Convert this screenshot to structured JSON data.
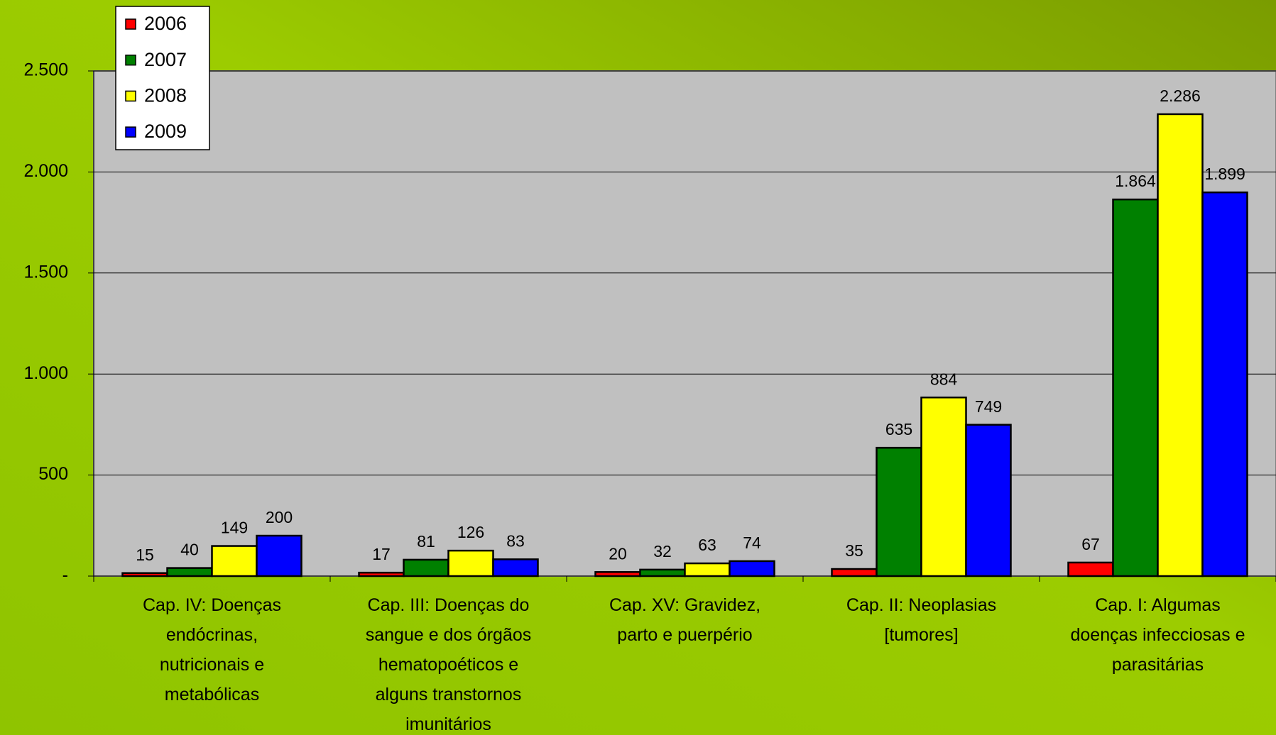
{
  "chart_data": {
    "type": "bar",
    "categories": [
      "Cap. IV: Doenças endócrinas, nutricionais e metabólicas",
      "Cap. III: Doenças do sangue e dos órgãos hematopoéticos e alguns transtornos imunitários",
      "Cap. XV: Gravidez, parto e puerpério",
      "Cap. II: Neoplasias [tumores]",
      "Cap. I: Algumas doenças infecciosas e parasitárias"
    ],
    "series": [
      {
        "name": "2006",
        "color": "#ff0000",
        "values": [
          15,
          17,
          20,
          35,
          67
        ]
      },
      {
        "name": "2007",
        "color": "#008000",
        "values": [
          40,
          81,
          32,
          635,
          1864
        ],
        "value_labels": [
          "40",
          "81",
          "32",
          "635",
          "1.864"
        ]
      },
      {
        "name": "2008",
        "color": "#ffff00",
        "values": [
          149,
          126,
          63,
          884,
          2286
        ],
        "value_labels": [
          "149",
          "126",
          "63",
          "884",
          "2.286"
        ]
      },
      {
        "name": "2009",
        "color": "#0000ff",
        "values": [
          200,
          83,
          74,
          749,
          1899
        ],
        "value_labels": [
          "200",
          "83",
          "74",
          "749",
          "1.899"
        ]
      }
    ],
    "ylim": [
      0,
      2500
    ],
    "yticks": [
      {
        "value": 0,
        "label": "-"
      },
      500,
      {
        "value": 1000,
        "label": "1.000"
      },
      {
        "value": 1500,
        "label": "1.500"
      },
      {
        "value": 2000,
        "label": "2.000"
      },
      {
        "value": 2500,
        "label": "2.500"
      }
    ],
    "grid": true,
    "legend": "top-left"
  }
}
